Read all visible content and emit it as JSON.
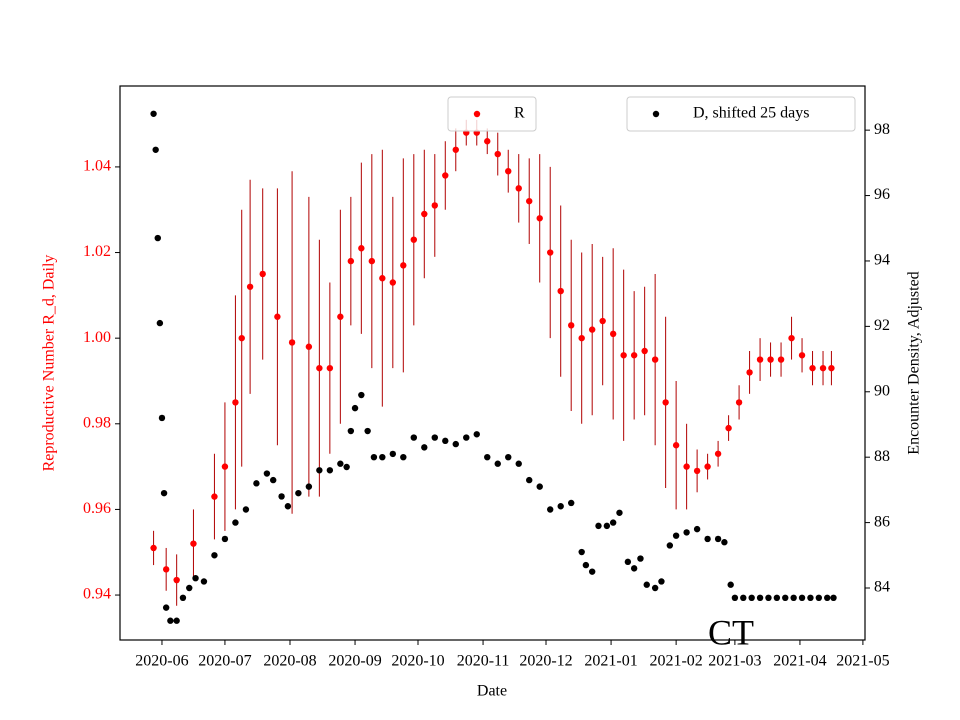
{
  "chart_data": {
    "type": "scatter",
    "xlabel": "Date",
    "ylabel": "Reproductive Number R_d, Daily",
    "y2label": "Encounter Density, Adjusted",
    "annotation": "CT",
    "xlim": [
      0,
      355
    ],
    "xticks": [
      {
        "value": 20,
        "label": "2020-06"
      },
      {
        "value": 50,
        "label": "2020-07"
      },
      {
        "value": 81,
        "label": "2020-08"
      },
      {
        "value": 112,
        "label": "2020-09"
      },
      {
        "value": 142,
        "label": "2020-10"
      },
      {
        "value": 173,
        "label": "2020-11"
      },
      {
        "value": 203,
        "label": "2020-12"
      },
      {
        "value": 234,
        "label": "2021-01"
      },
      {
        "value": 265,
        "label": "2021-02"
      },
      {
        "value": 293,
        "label": "2021-03"
      },
      {
        "value": 324,
        "label": "2021-04"
      },
      {
        "value": 354,
        "label": "2021-05"
      }
    ],
    "ylim": [
      0.9295,
      1.0589
    ],
    "yticks": [
      0.94,
      0.96,
      0.98,
      {
        "value": 1,
        "label": "1.00"
      },
      1.02,
      1.04
    ],
    "ycolor": "red",
    "y2lim": [
      82.41,
      99.35
    ],
    "y2ticks": [
      84,
      86,
      88,
      90,
      92,
      94,
      96,
      98
    ],
    "series": [
      {
        "name": "R",
        "color": "red",
        "axis": "y",
        "legend": "upper center",
        "x": [
          16,
          22,
          27,
          35,
          45,
          50,
          55,
          58,
          62,
          68,
          75,
          82,
          90,
          95,
          100,
          105,
          110,
          115,
          120,
          125,
          130,
          135,
          140,
          145,
          150,
          155,
          160,
          165,
          170,
          175,
          180,
          185,
          190,
          195,
          200,
          205,
          210,
          215,
          220,
          225,
          230,
          235,
          240,
          245,
          250,
          255,
          260,
          265,
          270,
          275,
          280,
          285,
          290,
          295,
          300,
          305,
          310,
          315,
          320,
          325,
          330,
          335,
          339
        ],
        "values": [
          0.951,
          0.946,
          0.9435,
          0.952,
          0.963,
          0.97,
          0.985,
          1.0,
          1.012,
          1.015,
          1.005,
          0.999,
          0.998,
          0.993,
          0.993,
          1.005,
          1.018,
          1.021,
          1.018,
          1.014,
          1.013,
          1.017,
          1.023,
          1.029,
          1.031,
          1.038,
          1.044,
          1.048,
          1.048,
          1.046,
          1.043,
          1.039,
          1.035,
          1.032,
          1.028,
          1.02,
          1.011,
          1.003,
          1.0,
          1.002,
          1.004,
          1.001,
          0.996,
          0.996,
          0.997,
          0.995,
          0.985,
          0.975,
          0.97,
          0.969,
          0.97,
          0.973,
          0.979,
          0.985,
          0.992,
          0.995,
          0.995,
          0.995,
          1.0,
          0.996,
          0.993,
          0.993,
          0.993
        ],
        "errors": [
          0.004,
          0.005,
          0.006,
          0.008,
          0.01,
          0.015,
          0.025,
          0.03,
          0.025,
          0.02,
          0.03,
          0.04,
          0.035,
          0.03,
          0.02,
          0.025,
          0.015,
          0.02,
          0.025,
          0.03,
          0.02,
          0.025,
          0.02,
          0.015,
          0.012,
          0.008,
          0.005,
          0.003,
          0.003,
          0.003,
          0.005,
          0.005,
          0.008,
          0.01,
          0.015,
          0.02,
          0.02,
          0.02,
          0.02,
          0.02,
          0.015,
          0.02,
          0.02,
          0.015,
          0.015,
          0.02,
          0.02,
          0.015,
          0.01,
          0.005,
          0.003,
          0.003,
          0.003,
          0.004,
          0.005,
          0.005,
          0.004,
          0.004,
          0.005,
          0.004,
          0.004,
          0.004,
          0.004
        ]
      },
      {
        "name": "D, shifted 25 days",
        "color": "black",
        "axis": "y2",
        "legend": "upper right",
        "x": [
          16,
          17,
          18,
          19,
          20,
          21,
          22,
          24,
          27,
          30,
          33,
          36,
          40,
          45,
          50,
          55,
          60,
          65,
          70,
          73,
          77,
          80,
          85,
          90,
          95,
          100,
          105,
          108,
          110,
          112,
          115,
          118,
          121,
          125,
          130,
          135,
          140,
          145,
          150,
          155,
          160,
          165,
          170,
          175,
          180,
          185,
          190,
          195,
          200,
          205,
          210,
          215,
          220,
          222,
          225,
          228,
          232,
          235,
          238,
          242,
          245,
          248,
          251,
          255,
          258,
          262,
          265,
          270,
          275,
          280,
          285,
          288,
          291,
          293,
          297,
          301,
          305,
          309,
          313,
          317,
          321,
          325,
          329,
          333,
          337,
          340
        ],
        "values": [
          98.5,
          97.4,
          94.7,
          92.1,
          89.2,
          86.9,
          83.4,
          83.0,
          83.0,
          83.7,
          84.0,
          84.3,
          84.2,
          85.0,
          85.5,
          86.0,
          86.4,
          87.2,
          87.5,
          87.3,
          86.8,
          86.5,
          86.9,
          87.1,
          87.6,
          87.6,
          87.8,
          87.7,
          88.8,
          89.5,
          89.9,
          88.8,
          88.0,
          88.0,
          88.1,
          88.0,
          88.6,
          88.3,
          88.6,
          88.5,
          88.4,
          88.6,
          88.7,
          88.0,
          87.8,
          88.0,
          87.8,
          87.3,
          87.1,
          86.4,
          86.5,
          86.6,
          85.1,
          84.7,
          84.5,
          85.9,
          85.9,
          86.0,
          86.3,
          84.8,
          84.6,
          84.9,
          84.1,
          84.0,
          84.2,
          85.3,
          85.6,
          85.7,
          85.8,
          85.5,
          85.5,
          85.4,
          84.1,
          83.7,
          83.7,
          83.7,
          83.7,
          83.7,
          83.7,
          83.7,
          83.7,
          83.7,
          83.7,
          83.7,
          83.7,
          83.7
        ]
      }
    ]
  }
}
